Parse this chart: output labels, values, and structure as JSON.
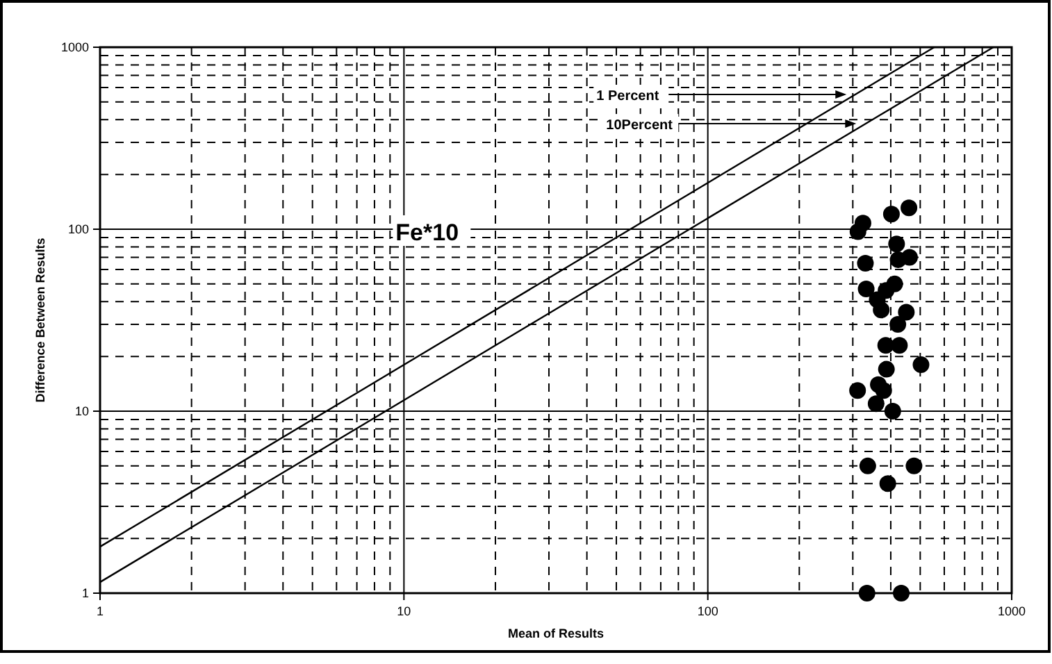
{
  "chart_data": {
    "type": "scatter",
    "xlabel": "Mean of Results",
    "ylabel": "Difference Between Results",
    "log": "xy",
    "grid": true,
    "xlim": [
      1,
      1000
    ],
    "ylim": [
      1,
      1000
    ],
    "xticks": [
      1,
      10,
      100,
      1000
    ],
    "yticks": [
      1,
      10,
      100,
      1000
    ],
    "annotations": [
      {
        "text": "1 Percent",
        "x": 286,
        "y": 550
      },
      {
        "text": "10Percent",
        "x": 308,
        "y": 380
      },
      "Fe*10"
    ],
    "series": [
      {
        "marker": "circle",
        "color": "#000000",
        "x": [
          459,
          402,
          324,
          312,
          418,
          423,
          461,
          330,
          386,
          412,
          332,
          361,
          372,
          450,
          422,
          385,
          427,
          503,
          387,
          311,
          364,
          379,
          358,
          406,
          336,
          477,
          391,
          334,
          433
        ],
        "values": [
          131,
          121,
          108,
          97,
          83,
          68,
          70,
          65,
          46,
          50,
          47,
          41,
          36,
          35,
          30,
          23,
          23,
          18,
          17,
          13,
          14,
          13,
          11,
          10,
          5,
          5,
          4,
          1,
          1
        ]
      },
      {
        "type": "line",
        "marker": "none",
        "color": "#000000",
        "x": [
          1,
          556
        ],
        "values": [
          1.8,
          1000
        ]
      },
      {
        "type": "line",
        "marker": "none",
        "color": "#000000",
        "x": [
          1,
          870
        ],
        "values": [
          1.15,
          1000
        ]
      }
    ]
  }
}
